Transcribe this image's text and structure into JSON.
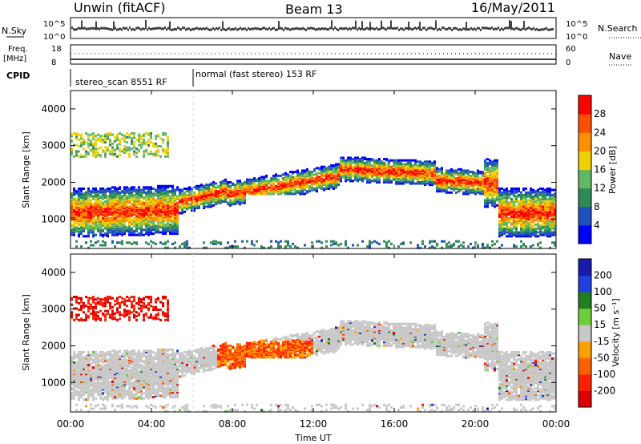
{
  "header": {
    "station": "Unwin (fitACF)",
    "beam": "Beam 13",
    "date": "16/May/2011"
  },
  "sky_panel": {
    "left_label": "N.Sky",
    "right_label": "N.Search",
    "ticks_left": [
      "10^5",
      "10^0"
    ],
    "ticks_right": [
      "10^5",
      "10^0"
    ]
  },
  "freq_panel": {
    "left_label_1": "Freq.",
    "left_label_2": "[MHz]",
    "right_label": "Nave",
    "ticks_left": [
      "18",
      "8"
    ],
    "ticks_right": [
      "60",
      "0"
    ]
  },
  "cpid_panel": {
    "label": "CPID",
    "segments": [
      "stereo_scan 8551 RF",
      "normal (fast stereo) 153 RF"
    ]
  },
  "colors": {
    "power": [
      "#0000ff",
      "#2050c0",
      "#2e8b57",
      "#63b863",
      "#f0d000",
      "#ff9000",
      "#ff5000",
      "#ff0000"
    ],
    "velocity": [
      "#1a1aaa",
      "#2040e0",
      "#1f7f1f",
      "#6dcc3a",
      "#c8c8c8",
      "#ffa000",
      "#ff6000",
      "#ff2000",
      "#dd0000"
    ]
  },
  "chart_data": [
    {
      "type": "heatmap",
      "name": "power",
      "ylabel": "Slant Range [km]",
      "yticks": [
        "1000",
        "2000",
        "3000",
        "4000"
      ],
      "ylim": [
        200,
        4500
      ],
      "colorbar_label": "Power [dB]",
      "colorbar_ticks": [
        "4",
        "8",
        "12",
        "16",
        "20",
        "24",
        "28"
      ]
    },
    {
      "type": "heatmap",
      "name": "velocity",
      "ylabel": "Slant Range [km]",
      "yticks": [
        "1000",
        "2000",
        "3000",
        "4000"
      ],
      "ylim": [
        200,
        4500
      ],
      "colorbar_label": "Velocity [m s⁻¹]",
      "colorbar_ticks": [
        "200",
        "100",
        "50",
        "15",
        "-15",
        "-50",
        "-100",
        "-200"
      ]
    }
  ],
  "x_axis": {
    "label": "Time UT",
    "ticks": [
      "00:00",
      "04:00",
      "08:00",
      "12:00",
      "16:00",
      "20:00",
      "00:00"
    ]
  }
}
